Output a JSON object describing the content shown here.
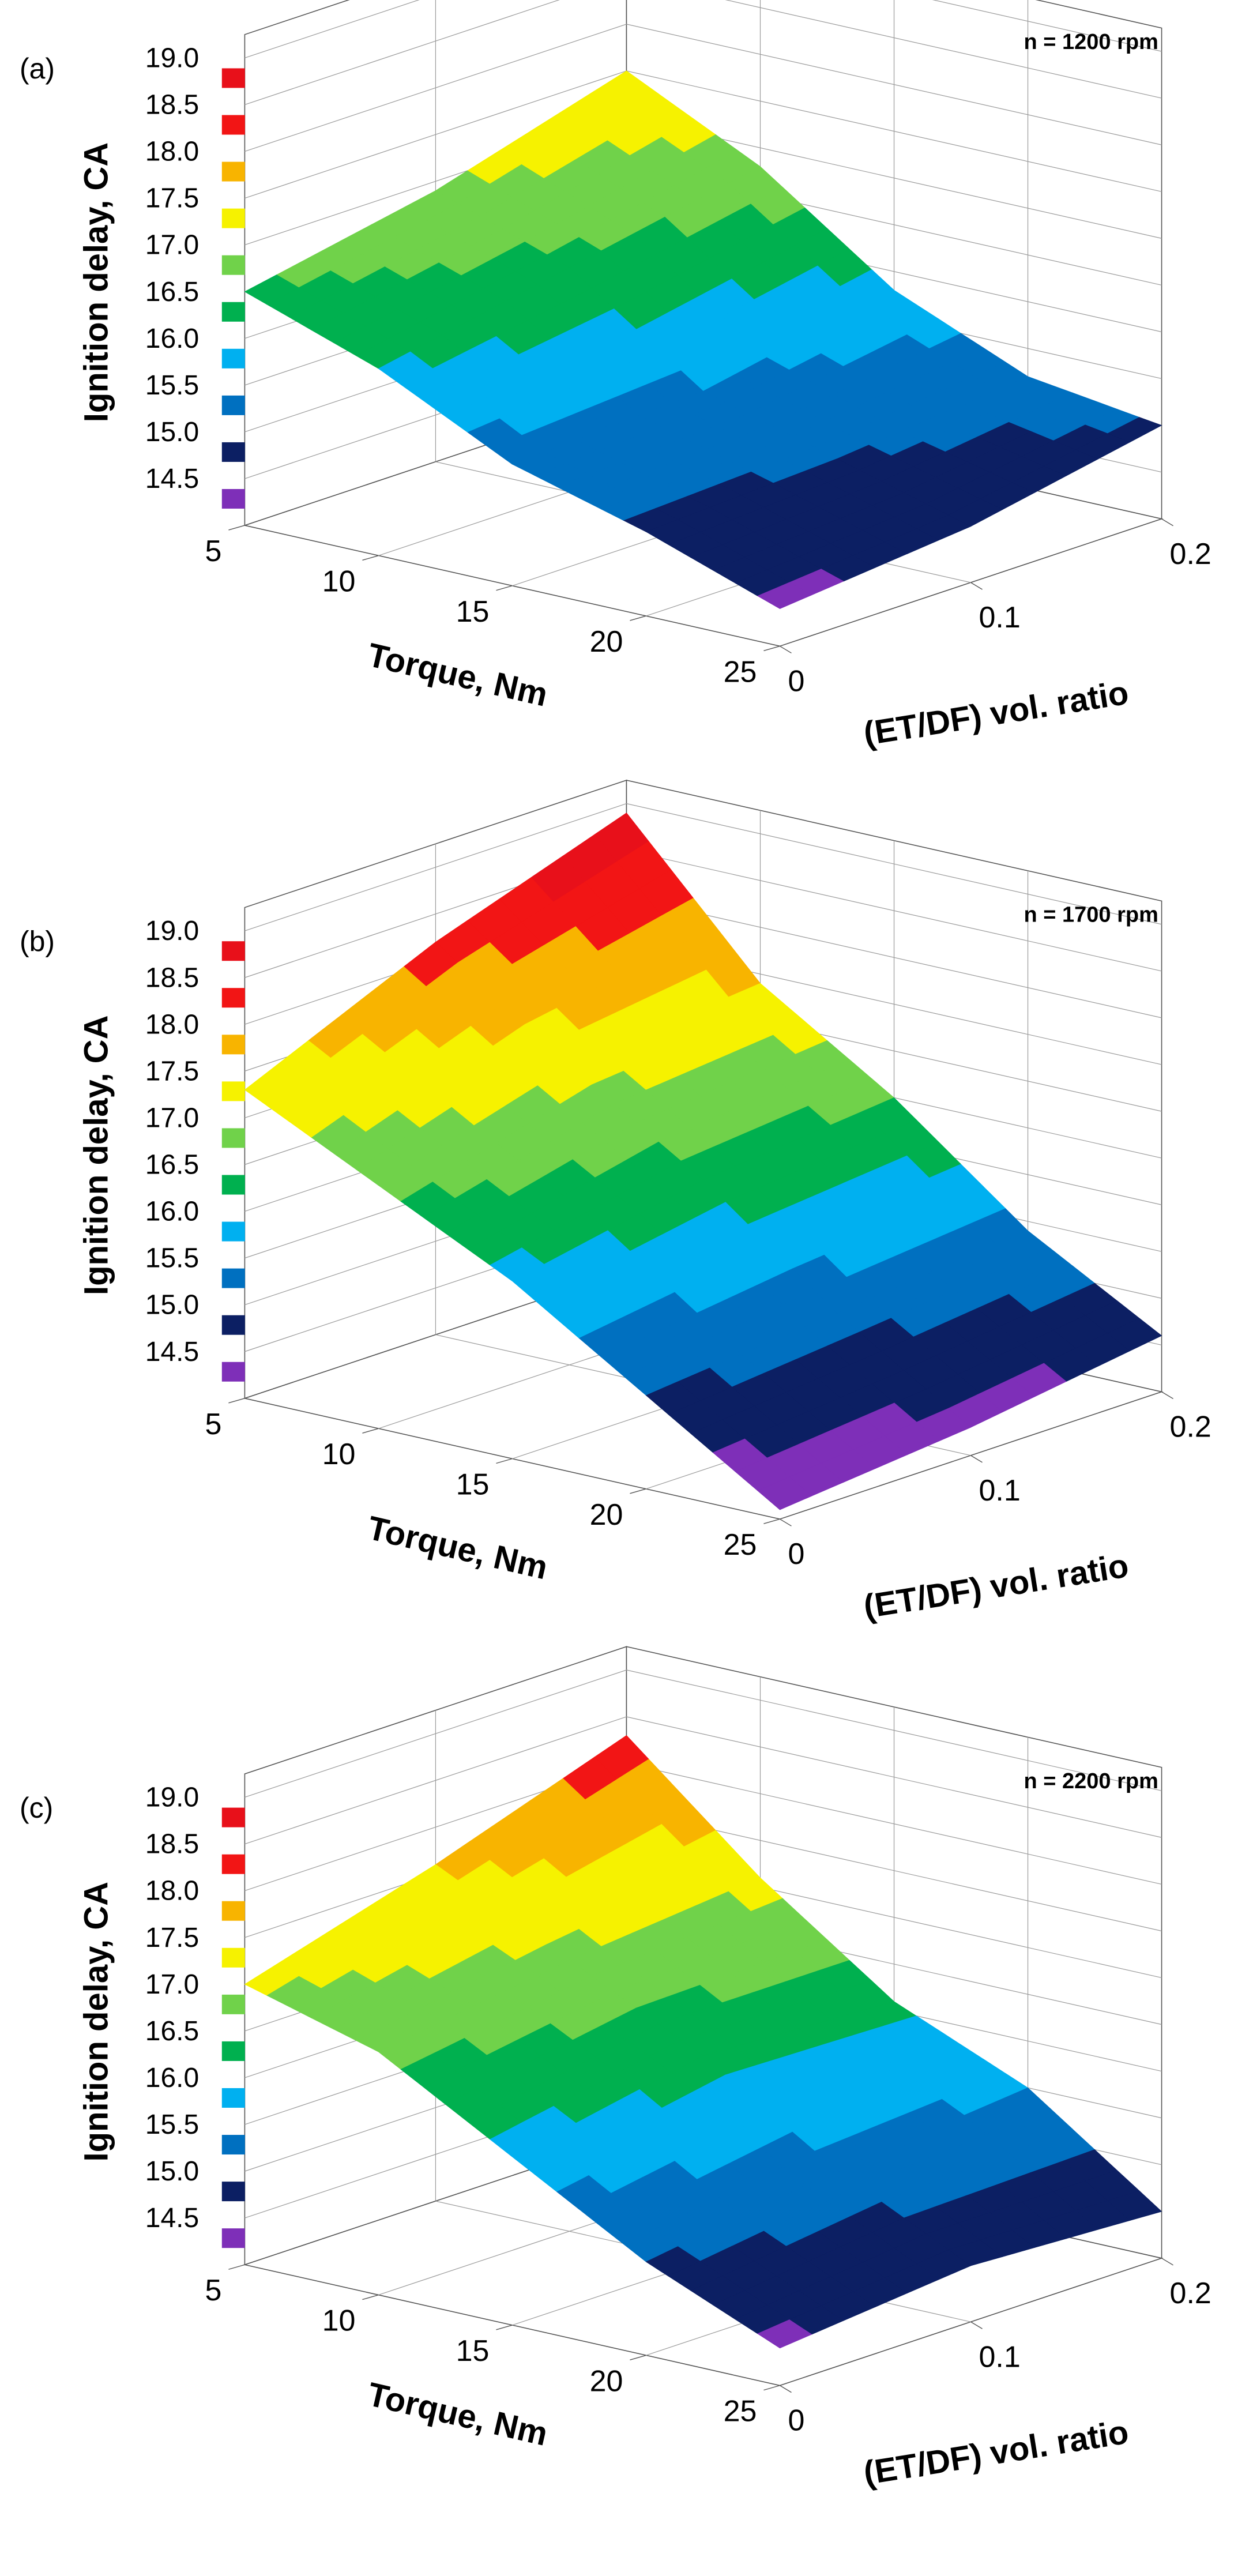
{
  "levels": [
    14.5,
    15.0,
    15.5,
    16.0,
    16.5,
    17.0,
    17.5,
    18.0,
    18.5,
    19.0
  ],
  "level_labels": [
    "19.0",
    "18.5",
    "18.0",
    "17.5",
    "17.0",
    "16.5",
    "16.0",
    "15.5",
    "15.0",
    "14.5"
  ],
  "legend_colors": [
    "#e8101a",
    "#f21515",
    "#f8b400",
    "#f6f200",
    "#70d24a",
    "#00b04f",
    "#00b0f0",
    "#0070c0",
    "#0c1f63",
    "#7e2fb8"
  ],
  "band_colors": [
    "#7e2fb8",
    "#0c1f63",
    "#0070c0",
    "#00b0f0",
    "#00b04f",
    "#70d24a",
    "#f6f200",
    "#f8b400",
    "#f21515",
    "#e8101a"
  ],
  "chart_data": [
    {
      "panel": "(a)",
      "type": "surface3d",
      "title": "n = 1200 rpm",
      "zlabel": "Ignition delay, CA",
      "xlabel": "Torque, Nm",
      "ylabel": "(ET/DF) vol. ratio",
      "x_ticks": [
        "5",
        "10",
        "15",
        "20",
        "25"
      ],
      "y_ticks": [
        "0",
        "0.1",
        "0.2"
      ],
      "zlim": [
        14.0,
        19.0
      ],
      "torque": [
        5,
        10,
        15,
        20,
        25
      ],
      "ratio": [
        0,
        0.1,
        0.2
      ],
      "z": [
        [
          16.5,
          16.9,
          17.5
        ],
        [
          16.0,
          16.4,
          16.8
        ],
        [
          15.3,
          15.4,
          15.8
        ],
        [
          14.9,
          15.0,
          15.2
        ],
        [
          14.4,
          14.6,
          15.0
        ]
      ]
    },
    {
      "panel": "(b)",
      "type": "surface3d",
      "title": "n = 1700 rpm",
      "zlabel": "Ignition delay, CA",
      "xlabel": "Torque, Nm",
      "ylabel": "(ET/DF) vol. ratio",
      "x_ticks": [
        "5",
        "10",
        "15",
        "20",
        "25"
      ],
      "y_ticks": [
        "0",
        "0.1",
        "0.2"
      ],
      "zlim": [
        14.0,
        19.0
      ],
      "torque": [
        5,
        10,
        15,
        20,
        25
      ],
      "ratio": [
        0,
        0.1,
        0.2
      ],
      "z": [
        [
          17.3,
          18.2,
          18.9
        ],
        [
          16.6,
          17.2,
          17.4
        ],
        [
          15.9,
          16.3,
          16.5
        ],
        [
          15.0,
          15.2,
          15.4
        ],
        [
          14.1,
          14.3,
          14.6
        ]
      ]
    },
    {
      "panel": "(c)",
      "type": "surface3d",
      "title": "n = 2200 rpm",
      "zlabel": "Ignition delay, CA",
      "xlabel": "Torque, Nm",
      "ylabel": "(ET/DF) vol. ratio",
      "x_ticks": [
        "5",
        "10",
        "15",
        "20",
        "25"
      ],
      "y_ticks": [
        "0",
        "0.1",
        "0.2"
      ],
      "zlim": [
        14.0,
        19.0
      ],
      "torque": [
        5,
        10,
        15,
        20,
        25
      ],
      "ratio": [
        0,
        0.1,
        0.2
      ],
      "z": [
        [
          17.0,
          17.6,
          18.3
        ],
        [
          16.6,
          16.9,
          17.1
        ],
        [
          15.8,
          16.2,
          16.1
        ],
        [
          15.0,
          15.3,
          15.5
        ],
        [
          14.4,
          14.6,
          14.5
        ]
      ]
    }
  ]
}
